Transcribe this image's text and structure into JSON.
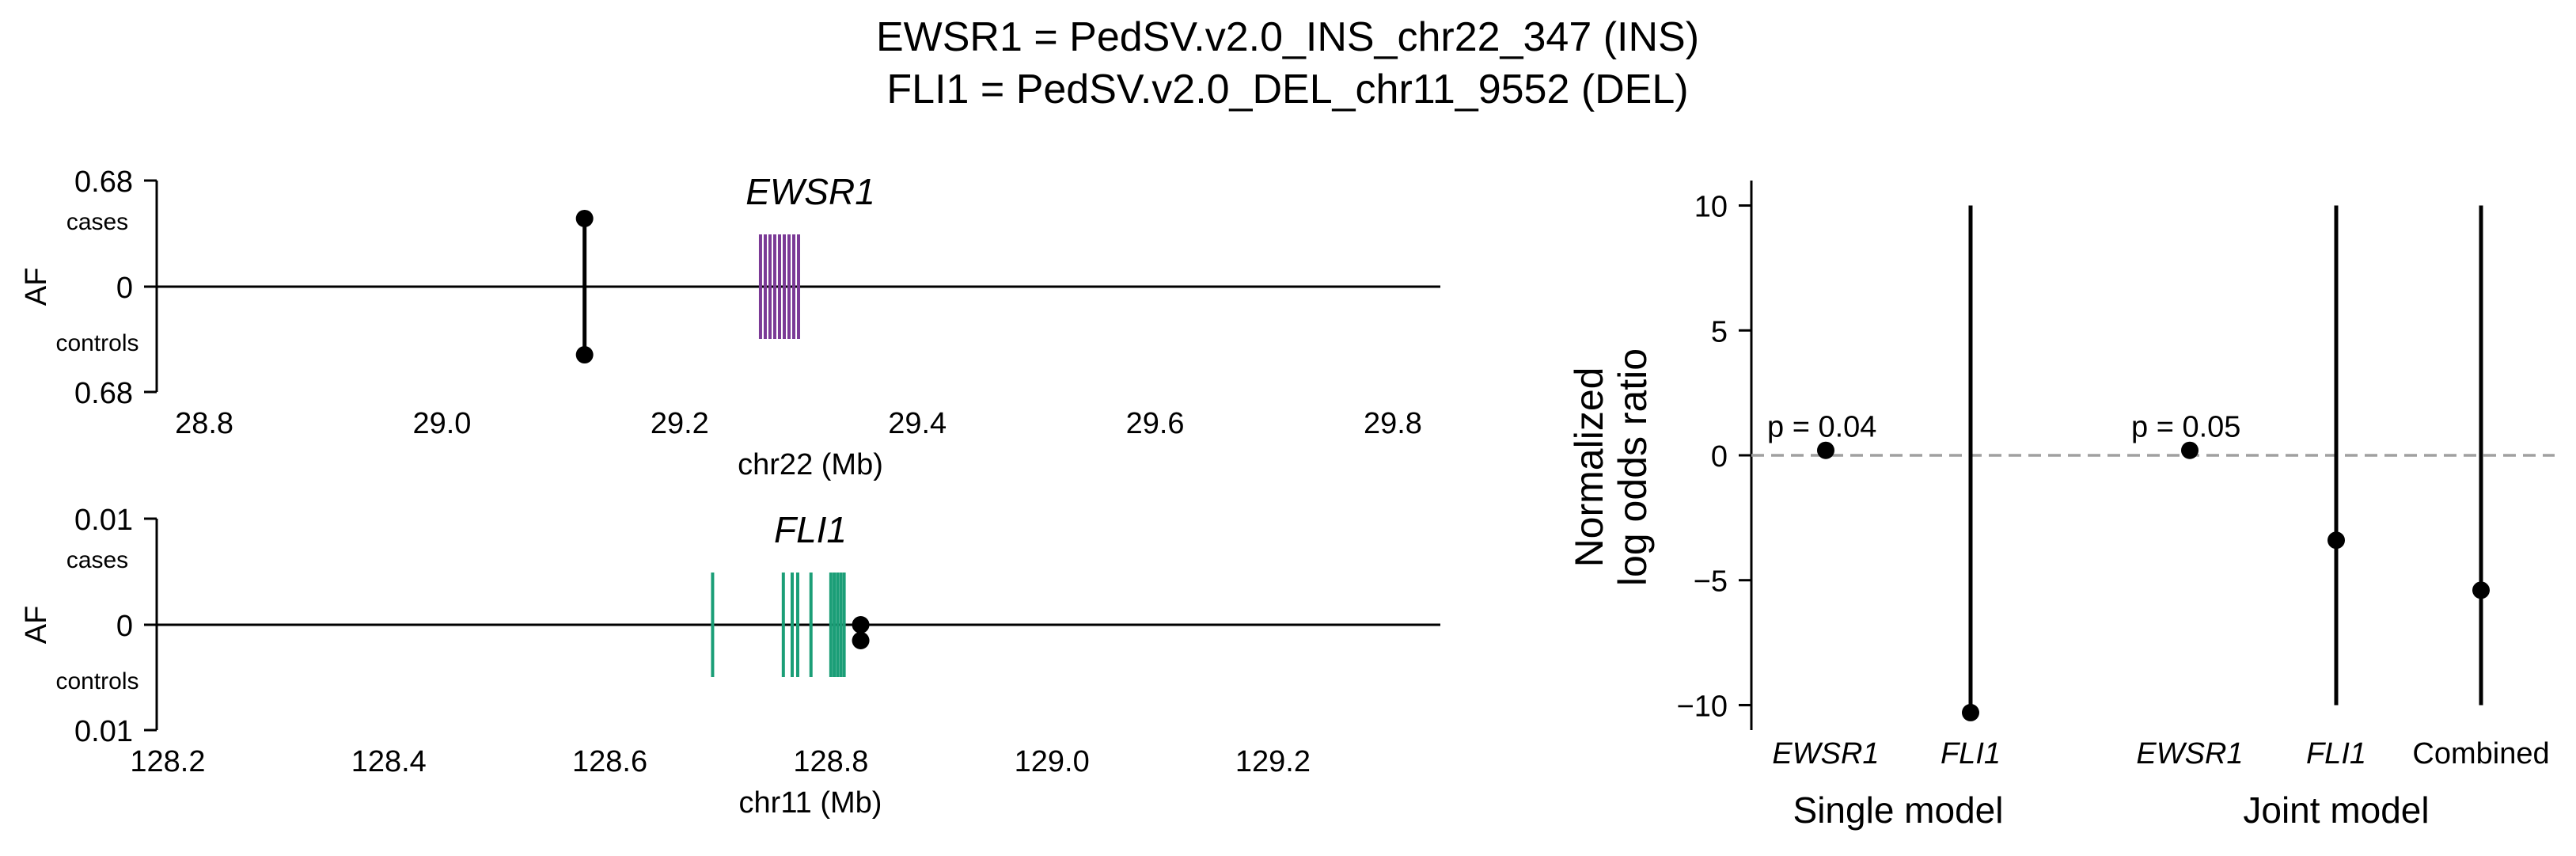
{
  "title_lines": [
    "EWSR1 = PedSV.v2.0_INS_chr22_347 (INS)",
    "FLI1 = PedSV.v2.0_DEL_chr11_9552 (DEL)"
  ],
  "chart_data": [
    {
      "type": "scatter",
      "panel": "locus",
      "title": "EWSR1",
      "title_italic": true,
      "xlabel": "chr22 (Mb)",
      "ylabel": "AF",
      "yticks": [
        "0.68",
        "0",
        "0.68"
      ],
      "ylabels": {
        "cases": "cases",
        "controls": "controls"
      },
      "xlim": [
        28.76,
        29.82
      ],
      "xticks": [
        "28.8",
        "29.0",
        "29.2",
        "29.4",
        "29.6",
        "29.8"
      ],
      "variant": {
        "x": 29.12,
        "cases_af": 0.44,
        "controls_af": 0.44
      },
      "gene_color": "#7b3a96",
      "exons": [
        29.268,
        29.272,
        29.276,
        29.28,
        29.284,
        29.288,
        29.292,
        29.296,
        29.3
      ]
    },
    {
      "type": "scatter",
      "panel": "locus",
      "title": "FLI1",
      "title_italic": true,
      "xlabel": "chr11 (Mb)",
      "ylabel": "AF",
      "yticks": [
        "0.01",
        "0",
        "0.01"
      ],
      "ylabels": {
        "cases": "cases",
        "controls": "controls"
      },
      "xlim": [
        128.19,
        129.33
      ],
      "xticks": [
        "128.2",
        "128.4",
        "128.6",
        "128.8",
        "129.0",
        "129.2"
      ],
      "variant": {
        "x": 128.827,
        "cases_af": 0.0,
        "controls_af": 0.0015
      },
      "gene_color": "#1b9e77",
      "exons": [
        128.693,
        128.757,
        128.765,
        128.77,
        128.782,
        128.8,
        128.803,
        128.806,
        128.809,
        128.812
      ]
    },
    {
      "type": "scatter",
      "panel": "odds_ratio",
      "ylabel_lines": [
        "Normalized",
        "log odds ratio"
      ],
      "ylim": [
        -11,
        11
      ],
      "yticks": [
        10,
        5,
        0,
        -5,
        -10
      ],
      "reference_line": 0,
      "groups": [
        {
          "label": "Single model",
          "categories": [
            "EWSR1",
            "FLI1"
          ]
        },
        {
          "label": "Joint model",
          "categories": [
            "EWSR1",
            "FLI1",
            "Combined"
          ]
        }
      ],
      "points": [
        {
          "category": "EWSR1",
          "group": "Single model",
          "italic": true,
          "value": 0.2,
          "ci": [
            0.2,
            0.2
          ],
          "p_label": "p = 0.04"
        },
        {
          "category": "FLI1",
          "group": "Single model",
          "italic": true,
          "value": -10.3,
          "ci": [
            -10.3,
            10.0
          ],
          "p_label": ""
        },
        {
          "category": "EWSR1",
          "group": "Joint model",
          "italic": true,
          "value": 0.2,
          "ci": [
            0.2,
            0.2
          ],
          "p_label": "p = 0.05"
        },
        {
          "category": "FLI1",
          "group": "Joint model",
          "italic": true,
          "value": -3.4,
          "ci": [
            -10.0,
            10.0
          ],
          "p_label": ""
        },
        {
          "category": "Combined",
          "group": "Joint model",
          "italic": false,
          "value": -5.4,
          "ci": [
            -10.0,
            10.0
          ],
          "p_label": ""
        }
      ]
    }
  ]
}
